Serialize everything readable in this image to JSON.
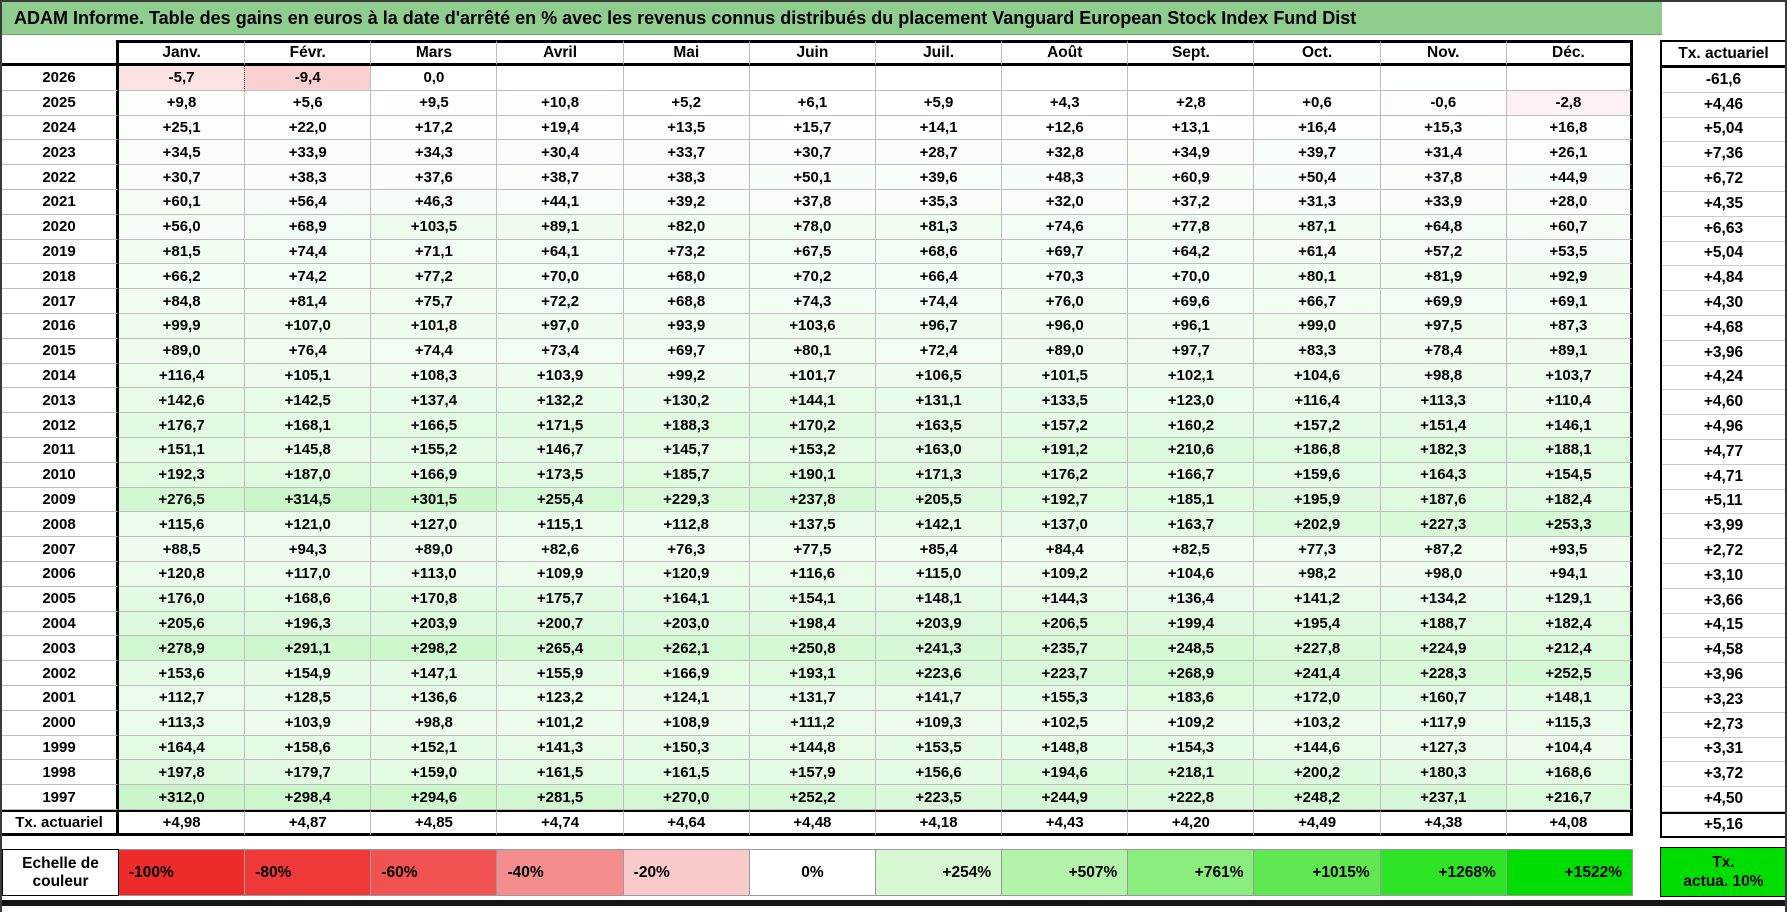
{
  "chart_data": {
    "type": "table",
    "title": "ADAM Informe. Table des gains en euros à la date d'arrêté en % avec les revenus connus distribués du placement Vanguard European Stock Index Fund Dist",
    "columns": [
      "Janv.",
      "Févr.",
      "Mars",
      "Avril",
      "Mai",
      "Juin",
      "Juil.",
      "Août",
      "Sept.",
      "Oct.",
      "Nov.",
      "Déc."
    ],
    "side_column_header": "Tx. actuariel",
    "rows": [
      {
        "year": "2026",
        "values": [
          "-5,7",
          "-9,4",
          "0,0",
          "",
          "",
          "",
          "",
          "",
          "",
          "",
          "",
          ""
        ],
        "tx": "-61,6"
      },
      {
        "year": "2025",
        "values": [
          "+9,8",
          "+5,6",
          "+9,5",
          "+10,8",
          "+5,2",
          "+6,1",
          "+5,9",
          "+4,3",
          "+2,8",
          "+0,6",
          "-0,6",
          "-2,8"
        ],
        "tx": "+4,46"
      },
      {
        "year": "2024",
        "values": [
          "+25,1",
          "+22,0",
          "+17,2",
          "+19,4",
          "+13,5",
          "+15,7",
          "+14,1",
          "+12,6",
          "+13,1",
          "+16,4",
          "+15,3",
          "+16,8"
        ],
        "tx": "+5,04"
      },
      {
        "year": "2023",
        "values": [
          "+34,5",
          "+33,9",
          "+34,3",
          "+30,4",
          "+33,7",
          "+30,7",
          "+28,7",
          "+32,8",
          "+34,9",
          "+39,7",
          "+31,4",
          "+26,1"
        ],
        "tx": "+7,36"
      },
      {
        "year": "2022",
        "values": [
          "+30,7",
          "+38,3",
          "+37,6",
          "+38,7",
          "+38,3",
          "+50,1",
          "+39,6",
          "+48,3",
          "+60,9",
          "+50,4",
          "+37,8",
          "+44,9"
        ],
        "tx": "+6,72"
      },
      {
        "year": "2021",
        "values": [
          "+60,1",
          "+56,4",
          "+46,3",
          "+44,1",
          "+39,2",
          "+37,8",
          "+35,3",
          "+32,0",
          "+37,2",
          "+31,3",
          "+33,9",
          "+28,0"
        ],
        "tx": "+4,35"
      },
      {
        "year": "2020",
        "values": [
          "+56,0",
          "+68,9",
          "+103,5",
          "+89,1",
          "+82,0",
          "+78,0",
          "+81,3",
          "+74,6",
          "+77,8",
          "+87,1",
          "+64,8",
          "+60,7"
        ],
        "tx": "+6,63"
      },
      {
        "year": "2019",
        "values": [
          "+81,5",
          "+74,4",
          "+71,1",
          "+64,1",
          "+73,2",
          "+67,5",
          "+68,6",
          "+69,7",
          "+64,2",
          "+61,4",
          "+57,2",
          "+53,5"
        ],
        "tx": "+5,04"
      },
      {
        "year": "2018",
        "values": [
          "+66,2",
          "+74,2",
          "+77,2",
          "+70,0",
          "+68,0",
          "+70,2",
          "+66,4",
          "+70,3",
          "+70,0",
          "+80,1",
          "+81,9",
          "+92,9"
        ],
        "tx": "+4,84"
      },
      {
        "year": "2017",
        "values": [
          "+84,8",
          "+81,4",
          "+75,7",
          "+72,2",
          "+68,8",
          "+74,3",
          "+74,4",
          "+76,0",
          "+69,6",
          "+66,7",
          "+69,9",
          "+69,1"
        ],
        "tx": "+4,30"
      },
      {
        "year": "2016",
        "values": [
          "+99,9",
          "+107,0",
          "+101,8",
          "+97,0",
          "+93,9",
          "+103,6",
          "+96,7",
          "+96,0",
          "+96,1",
          "+99,0",
          "+97,5",
          "+87,3"
        ],
        "tx": "+4,68"
      },
      {
        "year": "2015",
        "values": [
          "+89,0",
          "+76,4",
          "+74,4",
          "+73,4",
          "+69,7",
          "+80,1",
          "+72,4",
          "+89,0",
          "+97,7",
          "+83,3",
          "+78,4",
          "+89,1"
        ],
        "tx": "+3,96"
      },
      {
        "year": "2014",
        "values": [
          "+116,4",
          "+105,1",
          "+108,3",
          "+103,9",
          "+99,2",
          "+101,7",
          "+106,5",
          "+101,5",
          "+102,1",
          "+104,6",
          "+98,8",
          "+103,7"
        ],
        "tx": "+4,24"
      },
      {
        "year": "2013",
        "values": [
          "+142,6",
          "+142,5",
          "+137,4",
          "+132,2",
          "+130,2",
          "+144,1",
          "+131,1",
          "+133,5",
          "+123,0",
          "+116,4",
          "+113,3",
          "+110,4"
        ],
        "tx": "+4,60"
      },
      {
        "year": "2012",
        "values": [
          "+176,7",
          "+168,1",
          "+166,5",
          "+171,5",
          "+188,3",
          "+170,2",
          "+163,5",
          "+157,2",
          "+160,2",
          "+157,2",
          "+151,4",
          "+146,1"
        ],
        "tx": "+4,96"
      },
      {
        "year": "2011",
        "values": [
          "+151,1",
          "+145,8",
          "+155,2",
          "+146,7",
          "+145,7",
          "+153,2",
          "+163,0",
          "+191,2",
          "+210,6",
          "+186,8",
          "+182,3",
          "+188,1"
        ],
        "tx": "+4,77"
      },
      {
        "year": "2010",
        "values": [
          "+192,3",
          "+187,0",
          "+166,9",
          "+173,5",
          "+185,7",
          "+190,1",
          "+171,3",
          "+176,2",
          "+166,7",
          "+159,6",
          "+164,3",
          "+154,5"
        ],
        "tx": "+4,71"
      },
      {
        "year": "2009",
        "values": [
          "+276,5",
          "+314,5",
          "+301,5",
          "+255,4",
          "+229,3",
          "+237,8",
          "+205,5",
          "+192,7",
          "+185,1",
          "+195,9",
          "+187,6",
          "+182,4"
        ],
        "tx": "+5,11"
      },
      {
        "year": "2008",
        "values": [
          "+115,6",
          "+121,0",
          "+127,0",
          "+115,1",
          "+112,8",
          "+137,5",
          "+142,1",
          "+137,0",
          "+163,7",
          "+202,9",
          "+227,3",
          "+253,3"
        ],
        "tx": "+3,99"
      },
      {
        "year": "2007",
        "values": [
          "+88,5",
          "+94,3",
          "+89,0",
          "+82,6",
          "+76,3",
          "+77,5",
          "+85,4",
          "+84,4",
          "+82,5",
          "+77,3",
          "+87,2",
          "+93,5"
        ],
        "tx": "+2,72"
      },
      {
        "year": "2006",
        "values": [
          "+120,8",
          "+117,0",
          "+113,0",
          "+109,9",
          "+120,9",
          "+116,6",
          "+115,0",
          "+109,2",
          "+104,6",
          "+98,2",
          "+98,0",
          "+94,1"
        ],
        "tx": "+3,10"
      },
      {
        "year": "2005",
        "values": [
          "+176,0",
          "+168,6",
          "+170,8",
          "+175,7",
          "+164,1",
          "+154,1",
          "+148,1",
          "+144,3",
          "+136,4",
          "+141,2",
          "+134,2",
          "+129,1"
        ],
        "tx": "+3,66"
      },
      {
        "year": "2004",
        "values": [
          "+205,6",
          "+196,3",
          "+203,9",
          "+200,7",
          "+203,0",
          "+198,4",
          "+203,9",
          "+206,5",
          "+199,4",
          "+195,4",
          "+188,7",
          "+182,4"
        ],
        "tx": "+4,15"
      },
      {
        "year": "2003",
        "values": [
          "+278,9",
          "+291,1",
          "+298,2",
          "+265,4",
          "+262,1",
          "+250,8",
          "+241,3",
          "+235,7",
          "+248,5",
          "+227,8",
          "+224,9",
          "+212,4"
        ],
        "tx": "+4,58"
      },
      {
        "year": "2002",
        "values": [
          "+153,6",
          "+154,9",
          "+147,1",
          "+155,9",
          "+166,9",
          "+193,1",
          "+223,6",
          "+223,7",
          "+268,9",
          "+241,4",
          "+228,3",
          "+252,5"
        ],
        "tx": "+3,96"
      },
      {
        "year": "2001",
        "values": [
          "+112,7",
          "+128,5",
          "+136,6",
          "+123,2",
          "+124,1",
          "+131,7",
          "+141,7",
          "+155,3",
          "+183,6",
          "+172,0",
          "+160,7",
          "+148,1"
        ],
        "tx": "+3,23"
      },
      {
        "year": "2000",
        "values": [
          "+113,3",
          "+103,9",
          "+98,8",
          "+101,2",
          "+108,9",
          "+111,2",
          "+109,3",
          "+102,5",
          "+109,2",
          "+103,2",
          "+117,9",
          "+115,3"
        ],
        "tx": "+2,73"
      },
      {
        "year": "1999",
        "values": [
          "+164,4",
          "+158,6",
          "+152,1",
          "+141,3",
          "+150,3",
          "+144,8",
          "+153,5",
          "+148,8",
          "+154,3",
          "+144,6",
          "+127,3",
          "+104,4"
        ],
        "tx": "+3,31"
      },
      {
        "year": "1998",
        "values": [
          "+197,8",
          "+179,7",
          "+159,0",
          "+161,5",
          "+161,5",
          "+157,9",
          "+156,6",
          "+194,6",
          "+218,1",
          "+200,2",
          "+180,3",
          "+168,6"
        ],
        "tx": "+3,72"
      },
      {
        "year": "1997",
        "values": [
          "+312,0",
          "+298,4",
          "+294,6",
          "+281,5",
          "+270,0",
          "+252,2",
          "+223,5",
          "+244,9",
          "+222,8",
          "+248,2",
          "+237,1",
          "+216,7"
        ],
        "tx": "+4,50"
      }
    ],
    "footer": {
      "label": "Tx. actuariel",
      "values": [
        "+4,98",
        "+4,87",
        "+4,85",
        "+4,74",
        "+4,64",
        "+4,48",
        "+4,18",
        "+4,43",
        "+4,20",
        "+4,49",
        "+4,38",
        "+4,08"
      ],
      "tx": "+5,16"
    },
    "color_scale": {
      "label": "Echelle de couleur",
      "stops": [
        {
          "label": "-100%",
          "color": "#ee2b2b"
        },
        {
          "label": "-80%",
          "color": "#ef3939"
        },
        {
          "label": "-60%",
          "color": "#f15252"
        },
        {
          "label": "-40%",
          "color": "#f48d8d"
        },
        {
          "label": "-20%",
          "color": "#f9caca"
        },
        {
          "label": "0%",
          "color": "#ffffff"
        },
        {
          "label": "+254%",
          "color": "#d8f8d3"
        },
        {
          "label": "+507%",
          "color": "#b2f3a9"
        },
        {
          "label": "+761%",
          "color": "#8aee7e"
        },
        {
          "label": "+1015%",
          "color": "#5fe851"
        },
        {
          "label": "+1268%",
          "color": "#2fe326"
        },
        {
          "label": "+1522%",
          "color": "#00dd00"
        }
      ],
      "tx_box": [
        "Tx.",
        "actua. 10%"
      ],
      "tx_box_color": "#00dd00"
    },
    "style": {
      "title_bg": "#8fcd8f",
      "negative_full_color": "#ee2f2f",
      "positive_full_color": "#00d400",
      "negative_full_at": -42,
      "positive_full_at": 1522
    }
  }
}
